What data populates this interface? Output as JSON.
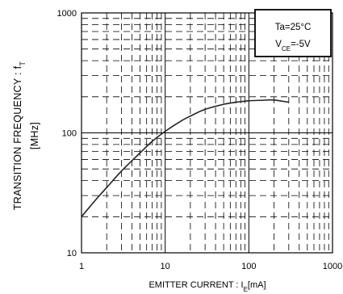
{
  "chart_data": {
    "type": "line",
    "x_scale": "log",
    "y_scale": "log",
    "xlim": [
      1,
      1000
    ],
    "ylim": [
      10,
      1000
    ],
    "x_ticks": [
      "1",
      "10",
      "100",
      "1000"
    ],
    "y_ticks": [
      "10",
      "100",
      "1000"
    ],
    "xlabel": {
      "main": "EMITTER CURRENT : I",
      "sub": "E",
      "tail": "[mA]"
    },
    "ylabel": {
      "line1_main": "TRANSITION FREQUENCY : f",
      "line1_sub": "T",
      "line2": "[MHz]"
    },
    "grid": "dashed",
    "legend_position": "top-right",
    "annotation": {
      "line1": "Ta=25°C",
      "line2_main": "V",
      "line2_sub": "CE",
      "line2_tail": "=-5V"
    },
    "series": [
      {
        "x": [
          1,
          1.5,
          2,
          3,
          5,
          7,
          10,
          15,
          20,
          30,
          50,
          70,
          100,
          150,
          200,
          300
        ],
        "y": [
          20,
          28,
          35,
          48,
          68,
          85,
          103,
          124,
          138,
          157,
          173,
          180,
          185,
          187,
          188,
          180
        ]
      }
    ]
  }
}
